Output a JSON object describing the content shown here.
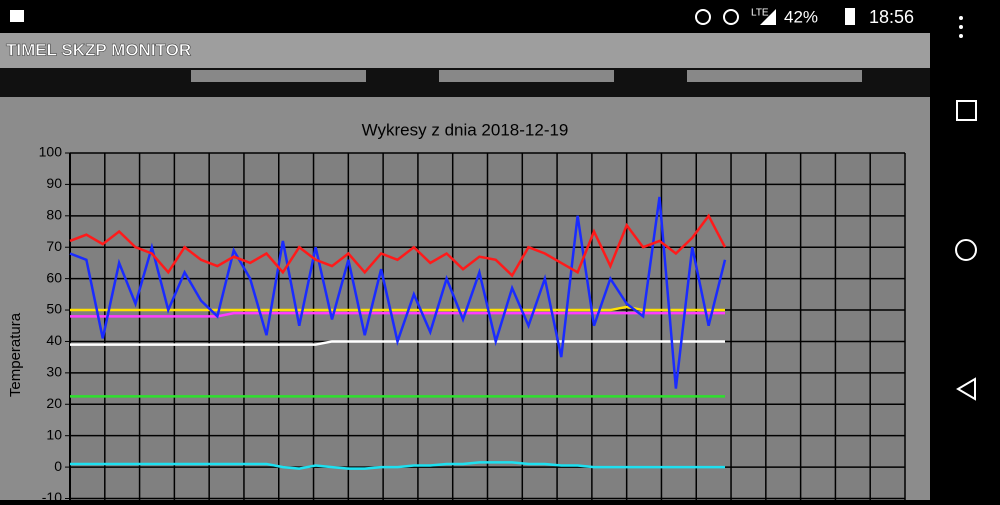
{
  "status_bar": {
    "network": "LTE",
    "battery": "42%",
    "time": "18:56"
  },
  "app_bar": {
    "title": "TIMEL SKZP MONITOR"
  },
  "chart_data": {
    "type": "line",
    "title": "Wykresy z dnia 2018-12-19",
    "y_label": "Temperatura",
    "ylim": [
      -10,
      100
    ],
    "yticks": [
      -10,
      0,
      10,
      20,
      30,
      40,
      50,
      60,
      70,
      80,
      90,
      100
    ],
    "grid": true,
    "series": [
      {
        "color": "#ff1a1a",
        "values": [
          72,
          74,
          71,
          75,
          70,
          68,
          62,
          70,
          66,
          64,
          67,
          65,
          68,
          62,
          70,
          66,
          64,
          68,
          62,
          68,
          66,
          70,
          65,
          68,
          63,
          67,
          66,
          61,
          70,
          68,
          65,
          62,
          75,
          64,
          77,
          70,
          72,
          68,
          73,
          80,
          70
        ]
      },
      {
        "color": "#1a2bff",
        "values": [
          68,
          66,
          41,
          65,
          52,
          70,
          50,
          62,
          53,
          48,
          69,
          60,
          42,
          72,
          45,
          70,
          47,
          66,
          42,
          63,
          40,
          55,
          43,
          60,
          47,
          62,
          40,
          57,
          45,
          60,
          35,
          80,
          45,
          60,
          52,
          48,
          86,
          25,
          70,
          45,
          66
        ]
      },
      {
        "color": "#ffe000",
        "values": [
          50,
          50,
          50,
          50,
          50,
          50,
          50,
          50,
          50,
          50,
          50,
          50,
          50,
          50,
          50,
          50,
          50,
          50,
          50,
          50,
          50,
          50,
          50,
          50,
          50,
          50,
          50,
          50,
          50,
          50,
          50,
          50,
          50,
          50,
          51,
          50,
          50,
          50,
          50,
          50,
          50
        ]
      },
      {
        "color": "#ff3cff",
        "values": [
          48,
          48,
          48,
          48,
          48,
          48,
          48,
          48,
          48,
          48,
          49,
          49,
          49,
          49,
          49,
          49,
          49,
          49,
          49,
          49,
          49,
          49,
          49,
          49,
          49,
          49,
          49,
          49,
          49,
          49,
          49,
          49,
          49,
          49,
          49,
          49,
          49,
          49,
          49,
          49,
          49
        ]
      },
      {
        "color": "#ffffff",
        "values": [
          39,
          39,
          39,
          39,
          39,
          39,
          39,
          39,
          39,
          39,
          39,
          39,
          39,
          39,
          39,
          39,
          40,
          40,
          40,
          40,
          40,
          40,
          40,
          40,
          40,
          40,
          40,
          40,
          40,
          40,
          40,
          40,
          40,
          40,
          40,
          40,
          40,
          40,
          40,
          40,
          40
        ]
      },
      {
        "color": "#2ee02e",
        "values": [
          22.5,
          22.5,
          22.5,
          22.5,
          22.5,
          22.5,
          22.5,
          22.5,
          22.5,
          22.5,
          22.5,
          22.5,
          22.5,
          22.5,
          22.5,
          22.5,
          22.5,
          22.5,
          22.5,
          22.5,
          22.5,
          22.5,
          22.5,
          22.5,
          22.5,
          22.5,
          22.5,
          22.5,
          22.5,
          22.5,
          22.5,
          22.5,
          22.5,
          22.5,
          22.5,
          22.5,
          22.5,
          22.5,
          22.5,
          22.5,
          22.5
        ]
      },
      {
        "color": "#1ee0f0",
        "values": [
          1,
          1,
          1,
          1,
          1,
          1,
          1,
          1,
          1,
          1,
          1,
          1,
          1,
          0,
          -0.5,
          0.5,
          0,
          -0.5,
          -0.5,
          0,
          0,
          0.5,
          0.5,
          1,
          1,
          1.5,
          1.5,
          1.5,
          1,
          1,
          0.5,
          0.5,
          0,
          0,
          0,
          0,
          0,
          0,
          0,
          0,
          0
        ]
      }
    ]
  }
}
